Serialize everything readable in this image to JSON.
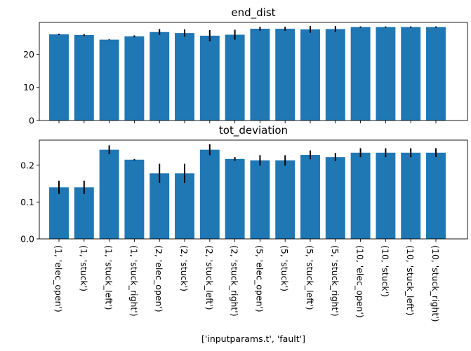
{
  "chart_data": [
    {
      "type": "bar",
      "title": "end_dist",
      "categories": [
        "(1, 'elec_open')",
        "(1, 'stuck')",
        "(1, 'stuck_left')",
        "(1, 'stuck_right')",
        "(2, 'elec_open')",
        "(2, 'stuck')",
        "(2, 'stuck_left')",
        "(2, 'stuck_right')",
        "(5, 'elec_open')",
        "(5, 'stuck')",
        "(5, 'stuck_left')",
        "(5, 'stuck_right')",
        "(10, 'elec_open')",
        "(10, 'stuck')",
        "(10, 'stuck_left')",
        "(10, 'stuck_right')"
      ],
      "values": [
        26.0,
        25.8,
        24.4,
        25.4,
        26.7,
        26.4,
        25.6,
        25.9,
        27.7,
        27.7,
        27.5,
        27.6,
        28.2,
        28.2,
        28.2,
        28.2
      ],
      "errors": [
        0.2,
        0.3,
        0.1,
        0.3,
        0.9,
        1.1,
        1.7,
        1.5,
        0.6,
        0.6,
        1.0,
        0.9,
        0.2,
        0.2,
        0.2,
        0.2
      ],
      "yticks": [
        0,
        10,
        20
      ],
      "ylim": [
        0,
        29.6
      ],
      "show_xtick_labels": false
    },
    {
      "type": "bar",
      "title": "tot_deviation",
      "categories": [
        "(1, 'elec_open')",
        "(1, 'stuck')",
        "(1, 'stuck_left')",
        "(1, 'stuck_right')",
        "(2, 'elec_open')",
        "(2, 'stuck')",
        "(2, 'stuck_left')",
        "(2, 'stuck_right')",
        "(5, 'elec_open')",
        "(5, 'stuck')",
        "(5, 'stuck_left')",
        "(5, 'stuck_right')",
        "(10, 'elec_open')",
        "(10, 'stuck')",
        "(10, 'stuck_left')",
        "(10, 'stuck_right')"
      ],
      "values": [
        0.14,
        0.14,
        0.242,
        0.215,
        0.178,
        0.178,
        0.242,
        0.217,
        0.213,
        0.213,
        0.228,
        0.222,
        0.234,
        0.234,
        0.234,
        0.234
      ],
      "errors": [
        0.018,
        0.018,
        0.012,
        0.002,
        0.026,
        0.026,
        0.015,
        0.005,
        0.014,
        0.014,
        0.012,
        0.011,
        0.012,
        0.012,
        0.012,
        0.012
      ],
      "yticks": [
        0.0,
        0.1,
        0.2
      ],
      "ytick_labels": [
        "0.0",
        "0.1",
        "0.2"
      ],
      "ylim": [
        0,
        0.268
      ],
      "show_xtick_labels": true
    }
  ],
  "xlabel": "['inputparams.t', 'fault']",
  "colors": {
    "bar": "#1f77b4",
    "error": "#000000",
    "axis": "#000000"
  }
}
